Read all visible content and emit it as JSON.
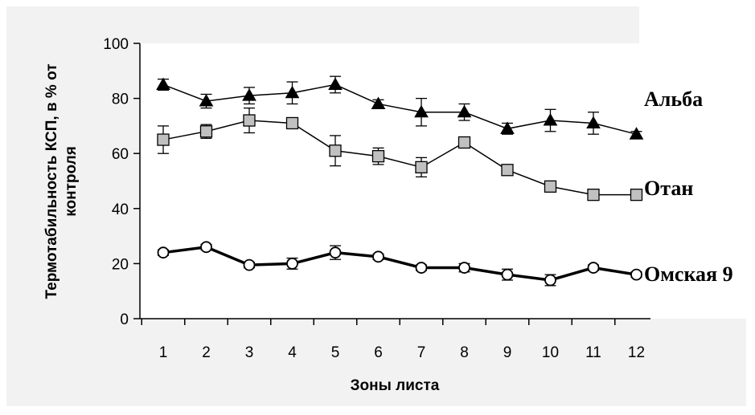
{
  "chart_data": {
    "type": "line",
    "xlabel": "Зоны листа",
    "ylabel_lines": [
      "Термотабильность КСП, в % от",
      "контроля"
    ],
    "categories": [
      "1",
      "2",
      "3",
      "4",
      "5",
      "6",
      "7",
      "8",
      "9",
      "10",
      "11",
      "12"
    ],
    "ylim": [
      0,
      100
    ],
    "yticks": [
      "0",
      "20",
      "40",
      "60",
      "80",
      "100"
    ],
    "grid": false,
    "colors": {
      "plot_area": "#ffffff",
      "background": "#f2f2f2",
      "square_fill": "#c0c0c0",
      "line": "#000000"
    },
    "series": [
      {
        "name": "Альба",
        "marker": "triangle",
        "values": [
          85,
          79,
          81,
          82,
          85,
          78,
          75,
          75,
          69,
          72,
          71,
          67
        ],
        "errors": [
          2,
          2.5,
          3,
          4,
          3,
          1.5,
          5,
          3,
          2,
          4,
          4,
          1
        ]
      },
      {
        "name": "Отан",
        "marker": "square",
        "values": [
          65,
          68,
          72,
          71,
          61,
          59,
          55,
          64,
          54,
          48,
          45,
          45
        ],
        "errors": [
          5,
          2.5,
          4.5,
          1.5,
          5.5,
          3,
          3.5,
          1.5,
          1,
          1,
          1,
          1
        ]
      },
      {
        "name": "Омская 9",
        "marker": "circle",
        "values": [
          24,
          26,
          19.5,
          20,
          24,
          22.5,
          18.5,
          18.5,
          16,
          14,
          18.5,
          16
        ],
        "errors": [
          1,
          1,
          1,
          2,
          2.5,
          1,
          1,
          1.5,
          2,
          2,
          1,
          1
        ]
      }
    ]
  }
}
